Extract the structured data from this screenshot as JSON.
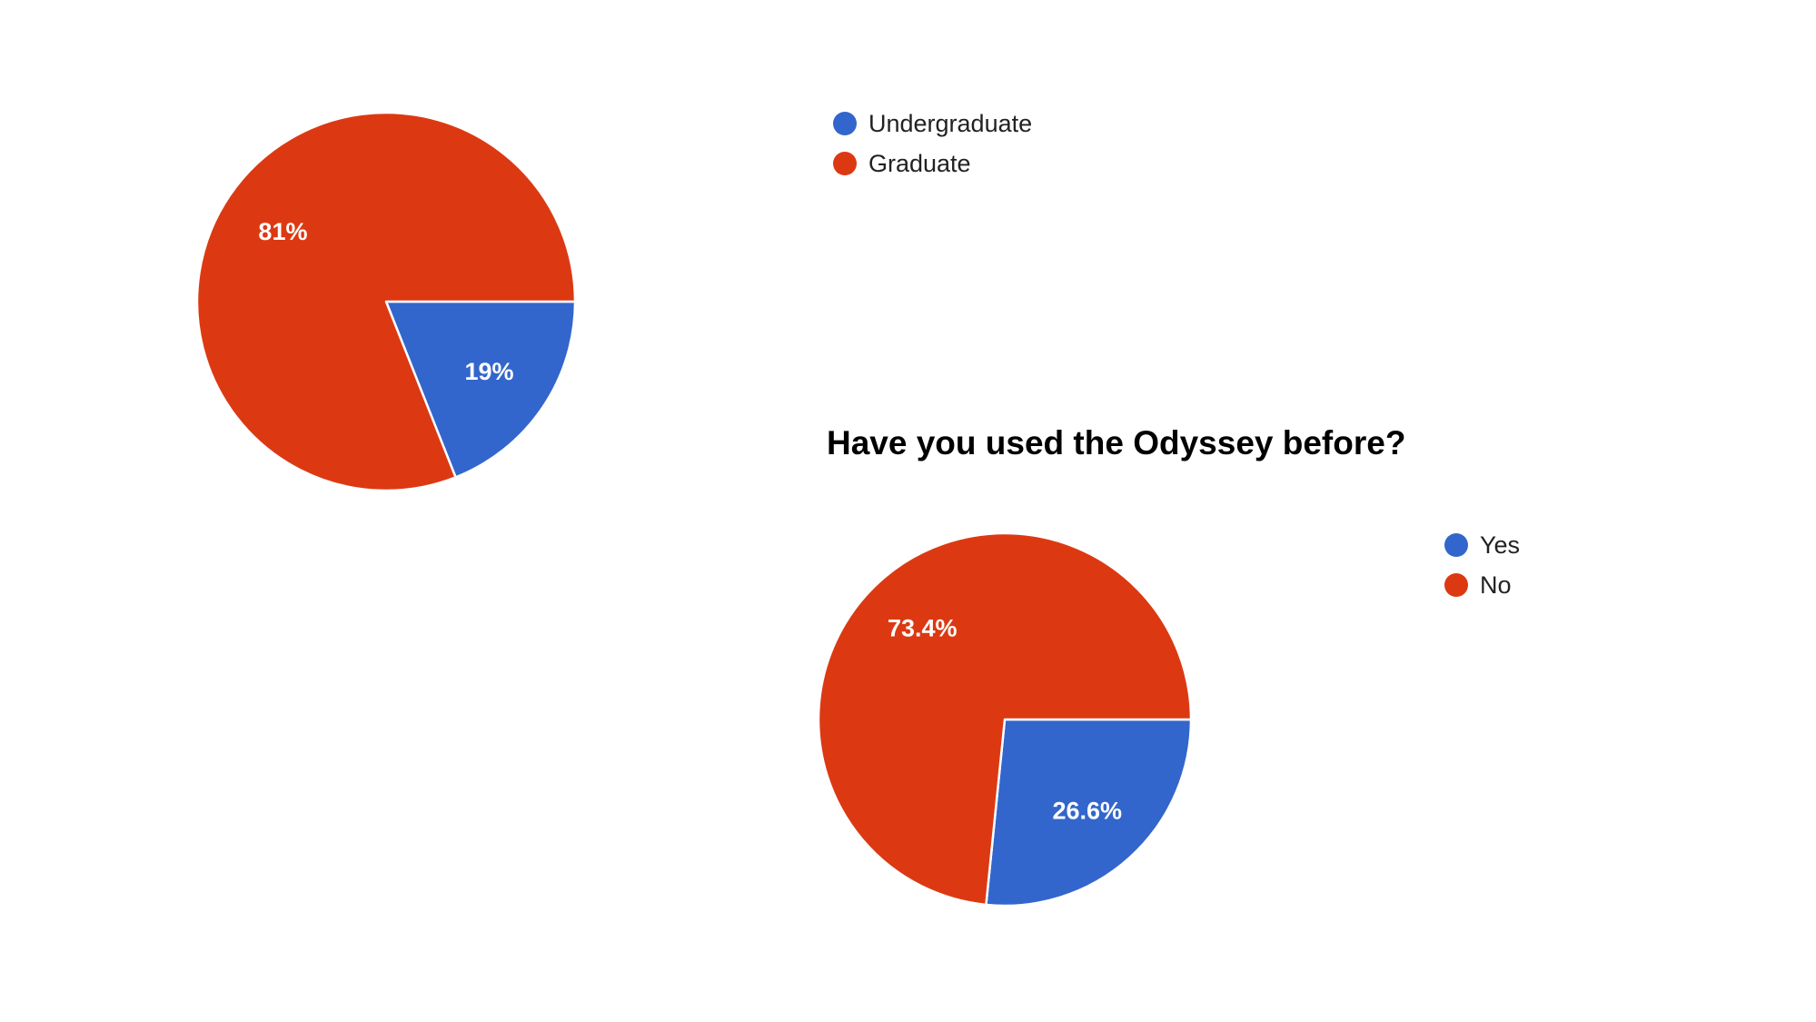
{
  "chart_data": [
    {
      "type": "pie",
      "title": "",
      "series": [
        {
          "name": "Undergraduate",
          "value": 19,
          "label": "19%",
          "color": "#3366cc"
        },
        {
          "name": "Graduate",
          "value": 81,
          "label": "81%",
          "color": "#dc3912"
        }
      ],
      "legend": "right"
    },
    {
      "type": "pie",
      "title": "Have you used the Odyssey before?",
      "series": [
        {
          "name": "Yes",
          "value": 26.6,
          "label": "26.6%",
          "color": "#3366cc"
        },
        {
          "name": "No",
          "value": 73.4,
          "label": "73.4%",
          "color": "#dc3912"
        }
      ],
      "legend": "right"
    }
  ]
}
